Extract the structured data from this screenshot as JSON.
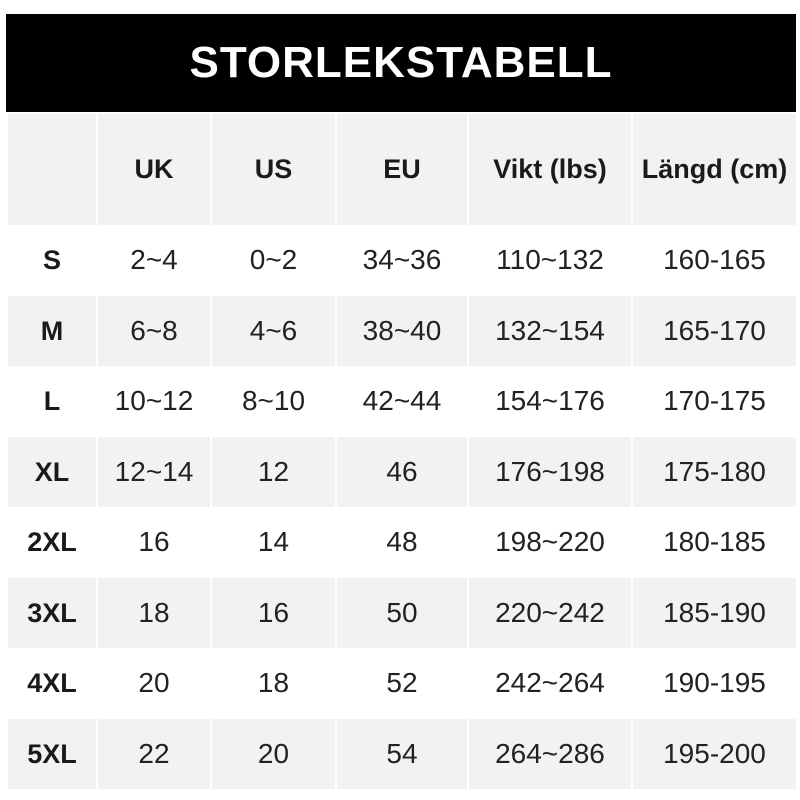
{
  "title": "STORLEKSTABELL",
  "headers": [
    "",
    "UK",
    "US",
    "EU",
    "Vikt (lbs)",
    "Längd (cm)"
  ],
  "rows": [
    [
      "S",
      "2~4",
      "0~2",
      "34~36",
      "110~132",
      "160-165"
    ],
    [
      "M",
      "6~8",
      "4~6",
      "38~40",
      "132~154",
      "165-170"
    ],
    [
      "L",
      "10~12",
      "8~10",
      "42~44",
      "154~176",
      "170-175"
    ],
    [
      "XL",
      "12~14",
      "12",
      "46",
      "176~198",
      "175-180"
    ],
    [
      "2XL",
      "16",
      "14",
      "48",
      "198~220",
      "180-185"
    ],
    [
      "3XL",
      "18",
      "16",
      "50",
      "220~242",
      "185-190"
    ],
    [
      "4XL",
      "20",
      "18",
      "52",
      "242~264",
      "190-195"
    ],
    [
      "5XL",
      "22",
      "20",
      "54",
      "264~286",
      "195-200"
    ]
  ]
}
